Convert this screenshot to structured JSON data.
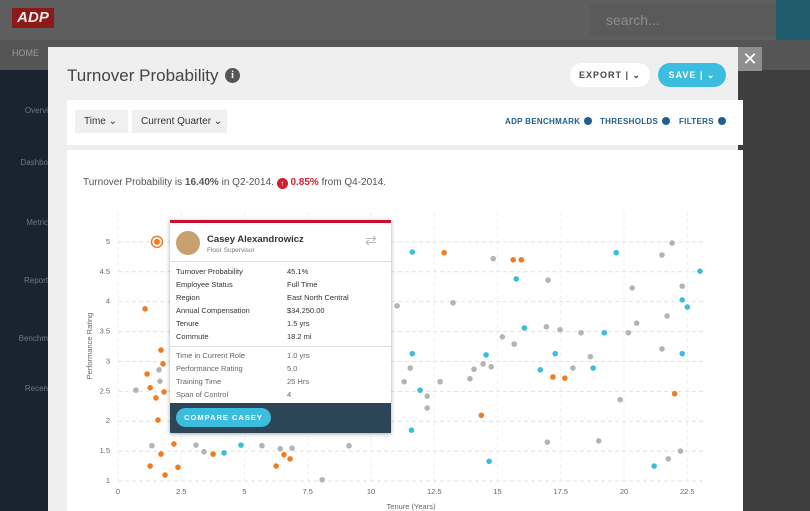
{
  "app": {
    "logo": "ADP",
    "search_placeholder": "search...",
    "nav_home": "HOME",
    "sidebar": [
      "Overvi",
      "Dashbo",
      "Metric",
      "Report",
      "Benchm",
      "Recen"
    ]
  },
  "modal": {
    "title": "Turnover Probability",
    "export": "EXPORT",
    "save": "SAVE",
    "filters": [
      "Time",
      "Current Quarter"
    ],
    "links": [
      "ADP BENCHMARK",
      "THRESHOLDS",
      "FILTERS"
    ],
    "summary": {
      "prefix": "Turnover Probability is",
      "value": "16.40%",
      "period": "in Q2-2014.",
      "change": "0.85%",
      "suffix": "from Q4-2014."
    }
  },
  "chart_data": {
    "type": "scatter",
    "x_label": "Tenure (Years)",
    "y_label": "Performance Rating",
    "xlim": [
      0,
      23.2
    ],
    "ylim": [
      1,
      5.5
    ],
    "xticks": [
      0,
      2.5,
      5,
      7.5,
      10,
      12.5,
      15,
      17.5,
      20,
      22.5
    ],
    "yticks": [
      1,
      1.5,
      2,
      2.5,
      3,
      3.5,
      4,
      4.5,
      5
    ],
    "grid": true,
    "highlight": {
      "series": 0,
      "index": 1
    },
    "series": [
      {
        "color": "#f07c22",
        "x": [
          1.07,
          1.54,
          1.15,
          1.7,
          1.78,
          1.27,
          1.5,
          1.82,
          1.58,
          1.27,
          1.86,
          2.37,
          1.7,
          2.21,
          3.76,
          6.25,
          6.56,
          6.8,
          12.89,
          15.62,
          15.94,
          14.36,
          17.19,
          17.66,
          22.0
        ],
        "y": [
          3.88,
          5.0,
          2.79,
          3.19,
          2.96,
          2.56,
          2.39,
          2.49,
          2.02,
          1.25,
          1.1,
          1.23,
          1.45,
          1.62,
          1.45,
          1.25,
          1.44,
          1.37,
          4.82,
          4.7,
          4.7,
          2.1,
          2.74,
          2.72,
          2.46
        ]
      },
      {
        "color": "#3bbde0",
        "x": [
          11.63,
          11.63,
          11.94,
          11.6,
          4.19,
          4.86,
          14.55,
          14.67,
          15.74,
          16.06,
          16.69,
          17.28,
          18.78,
          19.22,
          19.69,
          21.19,
          22.3,
          22.5,
          23.0,
          22.3
        ],
        "y": [
          4.83,
          3.13,
          2.52,
          1.85,
          1.47,
          1.6,
          3.11,
          1.33,
          4.38,
          3.56,
          2.86,
          3.13,
          2.89,
          3.48,
          4.82,
          1.25,
          4.03,
          3.91,
          4.51,
          3.13
        ]
      },
      {
        "color": "#b4b4b4",
        "x": [
          0.71,
          1.34,
          1.62,
          1.66,
          3.08,
          3.4,
          5.69,
          6.41,
          6.88,
          8.07,
          9.13,
          11.03,
          11.31,
          11.55,
          12.22,
          12.22,
          12.73,
          13.24,
          13.91,
          14.07,
          14.43,
          14.75,
          14.83,
          15.19,
          15.66,
          17.0,
          16.93,
          17.47,
          17.98,
          18.3,
          16.97,
          19.0,
          19.85,
          20.17,
          20.5,
          20.32,
          21.5,
          21.9,
          21.7,
          21.5,
          22.3,
          21.75,
          22.23,
          18.67
        ],
        "y": [
          2.52,
          1.59,
          2.86,
          2.67,
          1.6,
          1.49,
          1.59,
          1.54,
          1.55,
          1.02,
          1.59,
          3.93,
          2.66,
          2.89,
          2.42,
          2.22,
          2.66,
          3.98,
          2.71,
          2.87,
          2.96,
          2.91,
          4.72,
          3.41,
          3.29,
          4.36,
          3.58,
          3.53,
          2.89,
          3.48,
          1.65,
          1.67,
          2.36,
          3.48,
          3.64,
          4.23,
          4.78,
          4.98,
          3.76,
          3.21,
          4.26,
          1.37,
          1.5,
          3.08
        ]
      }
    ]
  },
  "tooltip": {
    "name": "Casey Alexandrowicz",
    "role": "Floor Supervisor",
    "rows": [
      [
        "Turnover Probability",
        "45.1%"
      ],
      [
        "Employee Status",
        "Full Time"
      ],
      [
        "Region",
        "East North Central"
      ],
      [
        "Annual Compensation",
        "$34,250.00"
      ],
      [
        "Tenure",
        "1.5 yrs"
      ],
      [
        "Commute",
        "18.2 mi"
      ]
    ],
    "rows2": [
      [
        "Time in Current Role",
        "1.0 yrs"
      ],
      [
        "Performance Rating",
        "5.0"
      ],
      [
        "Training Time",
        "25 Hrs"
      ],
      [
        "Span of Control",
        "4"
      ]
    ],
    "button": "COMPARE CASEY"
  }
}
